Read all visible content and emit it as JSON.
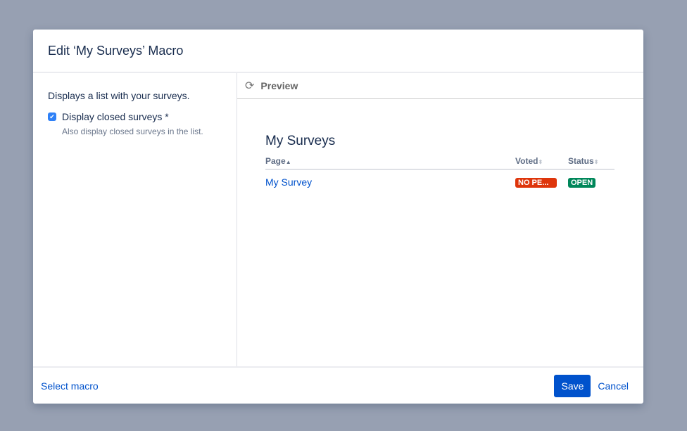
{
  "dialog": {
    "title": "Edit ‘My Surveys’ Macro"
  },
  "left": {
    "description": "Displays a list with your surveys.",
    "checkbox_label": "Display closed surveys *",
    "checkbox_checked": true,
    "help": "Also display closed surveys in the list."
  },
  "preview": {
    "label": "Preview",
    "icon": "refresh-icon",
    "heading": "My Surveys",
    "columns": [
      "Page",
      "Voted",
      "Status"
    ],
    "rows": [
      {
        "page": "My Survey",
        "voted": "NO PE...",
        "status": "OPEN"
      }
    ],
    "colors": {
      "voted": "#de350b",
      "status": "#00875a"
    }
  },
  "footer": {
    "select_macro": "Select macro",
    "save": "Save",
    "cancel": "Cancel"
  }
}
